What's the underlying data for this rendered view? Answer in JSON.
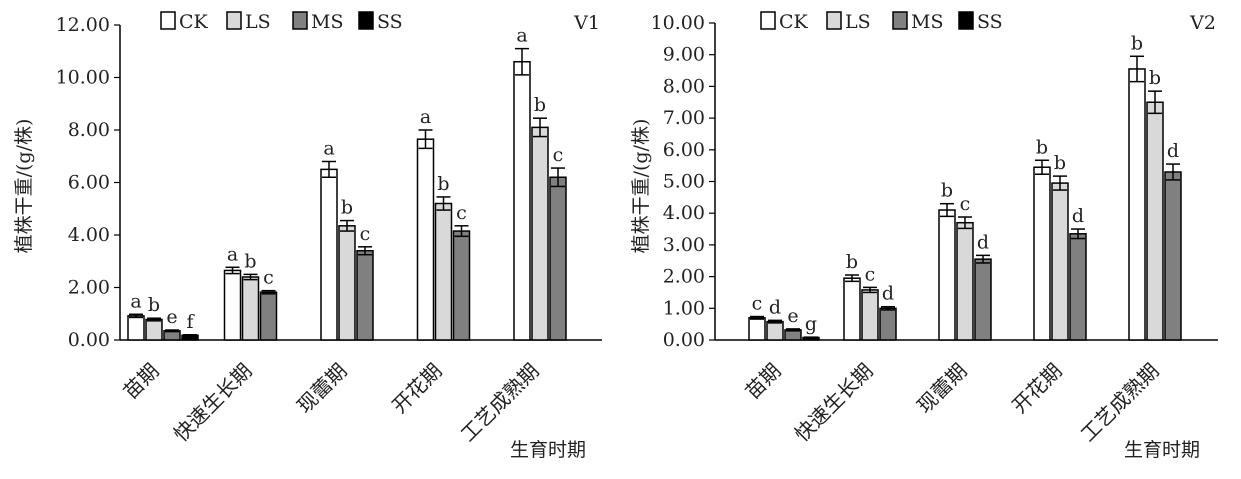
{
  "legend": [
    "CK",
    "LS",
    "MS",
    "SS"
  ],
  "colors": {
    "CK": "#ffffff",
    "LS": "#d9d9d9",
    "MS": "#808080",
    "SS": "#000000",
    "stroke": "#000000"
  },
  "chart_data": [
    {
      "type": "bar",
      "label": "V1",
      "categories": [
        "苗期",
        "快速生长期",
        "现蕾期",
        "开花期",
        "工艺成熟期"
      ],
      "ylabel": "植株干重/(g/株)",
      "xlabel": "生育时期",
      "ylim": [
        0,
        12
      ],
      "yticks": [
        "0.00",
        "2.00",
        "4.00",
        "6.00",
        "8.00",
        "10.00",
        "12.00"
      ],
      "ytick_values": [
        0,
        2,
        4,
        6,
        8,
        10,
        12
      ],
      "legend_position": "top",
      "series": [
        {
          "name": "CK",
          "values": [
            0.92,
            2.65,
            6.5,
            7.65,
            10.6
          ],
          "errors": [
            0.06,
            0.12,
            0.3,
            0.35,
            0.5
          ],
          "letters": [
            "a",
            "a",
            "a",
            "a",
            "a"
          ]
        },
        {
          "name": "LS",
          "values": [
            0.78,
            2.4,
            4.35,
            5.2,
            8.1
          ],
          "errors": [
            0.05,
            0.1,
            0.2,
            0.25,
            0.35
          ],
          "letters": [
            "b",
            "b",
            "b",
            "b",
            "b"
          ]
        },
        {
          "name": "MS",
          "values": [
            0.35,
            1.82,
            3.4,
            4.15,
            6.2
          ],
          "errors": [
            0.03,
            0.06,
            0.15,
            0.2,
            0.35
          ],
          "letters": [
            "e",
            "c",
            "c",
            "c",
            "c"
          ]
        },
        {
          "name": "SS",
          "values": [
            0.18,
            null,
            null,
            null,
            null
          ],
          "errors": [
            0.02,
            null,
            null,
            null,
            null
          ],
          "letters": [
            "f",
            null,
            null,
            null,
            null
          ]
        }
      ]
    },
    {
      "type": "bar",
      "label": "V2",
      "categories": [
        "苗期",
        "快速生长期",
        "现蕾期",
        "开花期",
        "工艺成熟期"
      ],
      "ylabel": "植株干重/(g/株)",
      "xlabel": "生育时期",
      "ylim": [
        0,
        10
      ],
      "yticks": [
        "0.00",
        "1.00",
        "2.00",
        "3.00",
        "4.00",
        "5.00",
        "6.00",
        "7.00",
        "8.00",
        "9.00",
        "10.00"
      ],
      "ytick_values": [
        0,
        1,
        2,
        3,
        4,
        5,
        6,
        7,
        8,
        9,
        10
      ],
      "legend_position": "top",
      "series": [
        {
          "name": "CK",
          "values": [
            0.7,
            1.95,
            4.1,
            5.45,
            8.55
          ],
          "errors": [
            0.04,
            0.1,
            0.2,
            0.22,
            0.4
          ],
          "letters": [
            "c",
            "b",
            "b",
            "b",
            "b"
          ]
        },
        {
          "name": "LS",
          "values": [
            0.58,
            1.58,
            3.7,
            4.95,
            7.5
          ],
          "errors": [
            0.04,
            0.08,
            0.18,
            0.22,
            0.35
          ],
          "letters": [
            "d",
            "c",
            "c",
            "b",
            "b"
          ]
        },
        {
          "name": "MS",
          "values": [
            0.32,
            1.0,
            2.55,
            3.35,
            5.3
          ],
          "errors": [
            0.03,
            0.05,
            0.12,
            0.15,
            0.25
          ],
          "letters": [
            "e",
            "d",
            "d",
            "d",
            "d"
          ]
        },
        {
          "name": "SS",
          "values": [
            0.08,
            null,
            null,
            null,
            null
          ],
          "errors": [
            0.01,
            null,
            null,
            null,
            null
          ],
          "letters": [
            "g",
            null,
            null,
            null,
            null
          ]
        }
      ]
    }
  ]
}
